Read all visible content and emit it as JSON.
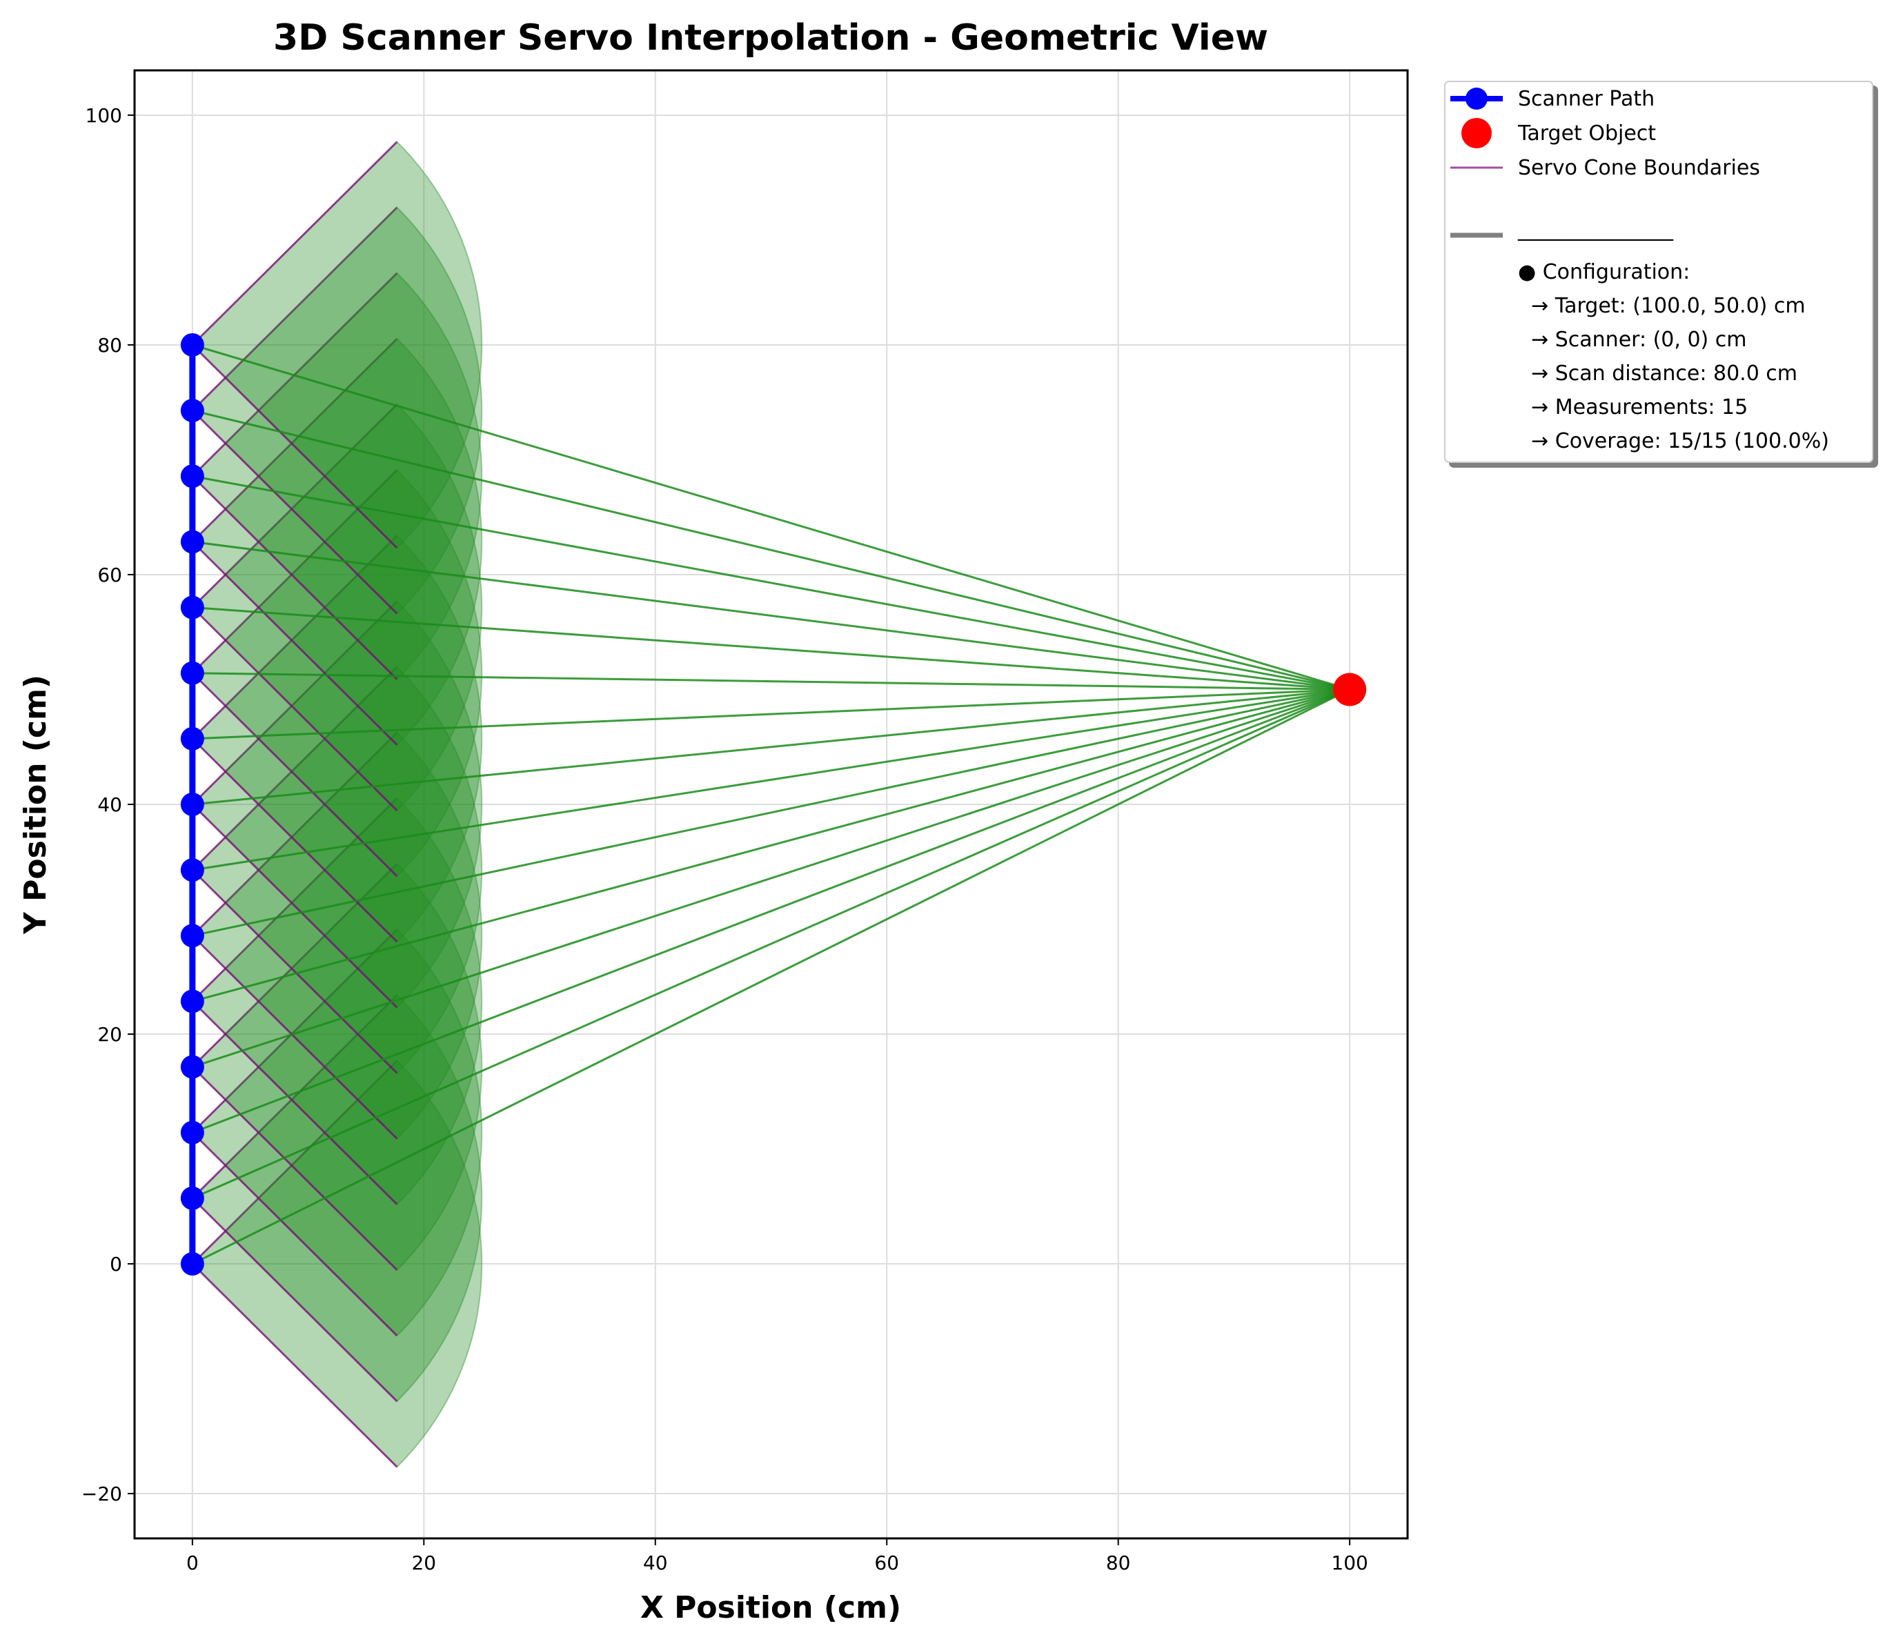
{
  "chart_data": {
    "type": "scatter",
    "title": "3D Scanner Servo Interpolation - Geometric View",
    "xlabel": "X Position (cm)",
    "ylabel": "Y Position (cm)",
    "xlim": [
      -5,
      105
    ],
    "ylim": [
      -23.9,
      103.9
    ],
    "xticks": [
      0,
      20,
      40,
      60,
      80,
      100
    ],
    "yticks": [
      -20,
      0,
      20,
      40,
      60,
      80,
      100
    ],
    "grid": true,
    "legend_position": "outside-upper-right",
    "target": {
      "x": 100,
      "y": 50
    },
    "scanner_points": {
      "x": [
        0,
        0,
        0,
        0,
        0,
        0,
        0,
        0,
        0,
        0,
        0,
        0,
        0,
        0,
        0
      ],
      "y": [
        0,
        5.714,
        11.429,
        17.143,
        22.857,
        28.571,
        34.286,
        40,
        45.714,
        51.429,
        57.143,
        62.857,
        68.571,
        74.286,
        80
      ]
    },
    "cone": {
      "boundary_x": 17.68,
      "half_width_y": 17.68,
      "arc_radius": 25
    },
    "series": [
      {
        "name": "Scanner Path",
        "color": "#0000ff"
      },
      {
        "name": "Target Object",
        "color": "#ff0000"
      },
      {
        "name": "Servo Cone Boundaries",
        "color": "#800080"
      },
      {
        "name": "_______________",
        "color": "#808080"
      }
    ],
    "legend_info": [
      "● Configuration:",
      "  → Target: (100.0, 50.0) cm",
      "  → Scanner: (0, 0) cm",
      "  → Scan distance: 80.0 cm",
      "  → Measurements: 15",
      "  → Coverage: 15/15 (100.0%)"
    ],
    "colors": {
      "path": "#0000ff",
      "target": "#ff0000",
      "ray": "#1a8c1a",
      "cone_fill": "#228b22",
      "cone_edge": "#800080"
    }
  }
}
